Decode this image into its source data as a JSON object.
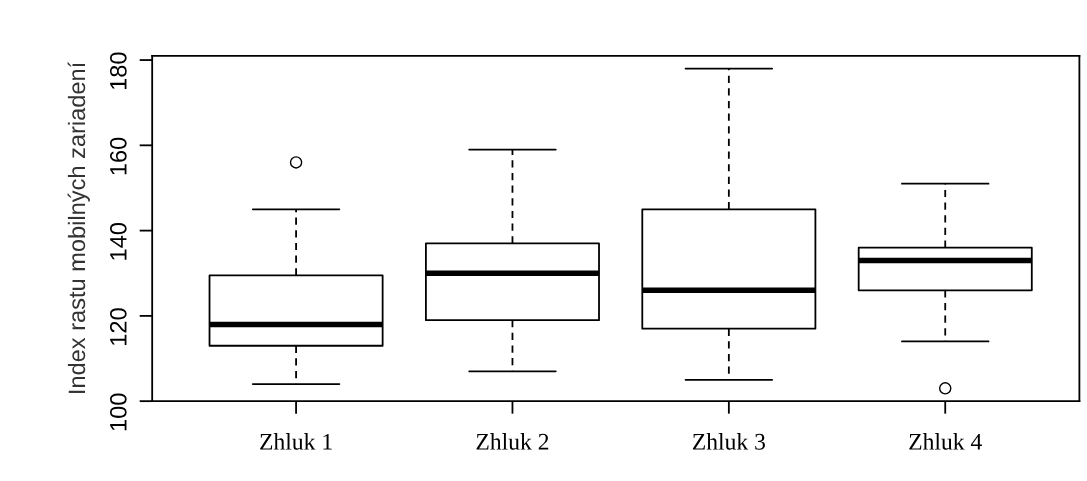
{
  "chart_data": {
    "type": "box",
    "ylabel": "Index rastu mobilných zariadení",
    "categories": [
      "Zhluk 1",
      "Zhluk 2",
      "Zhluk 3",
      "Zhluk 4"
    ],
    "boxes": [
      {
        "low": 104,
        "q1": 113,
        "median": 118,
        "q3": 129.5,
        "high": 145,
        "outliers": [
          156
        ]
      },
      {
        "low": 107,
        "q1": 119,
        "median": 130,
        "q3": 137,
        "high": 159
      },
      {
        "low": 105,
        "q1": 117,
        "median": 126,
        "q3": 145,
        "high": 178
      },
      {
        "low": 114,
        "q1": 126,
        "median": 133,
        "q3": 136,
        "high": 151,
        "outliers": [
          103
        ]
      }
    ],
    "ylim": [
      100,
      181
    ],
    "yticks": [
      100,
      120,
      140,
      160,
      180
    ],
    "grid": false
  }
}
